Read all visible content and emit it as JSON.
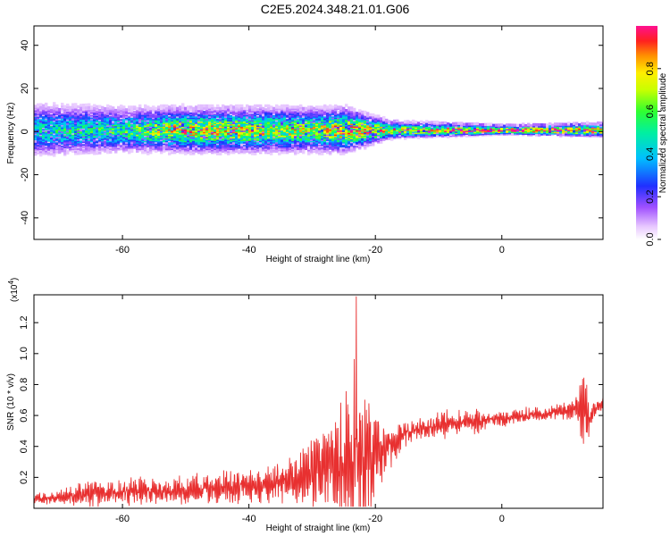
{
  "title": "C2E5.2024.348.21.01.G06",
  "chart_data": [
    {
      "type": "heatmap",
      "xlabel": "Height of straight line (km)",
      "ylabel": "Frequency (Hz)",
      "xlim": [
        -74,
        16
      ],
      "ylim": [
        -50,
        49
      ],
      "xticks": [
        -60,
        -40,
        -20,
        0
      ],
      "yticks": [
        -40,
        -20,
        0,
        20,
        40
      ],
      "colorbar": {
        "label": "Normalized spectral amplitude",
        "range": [
          0.0,
          1.0
        ],
        "ticks": [
          "0.0",
          "0.2",
          "0.4",
          "0.6",
          "0.8"
        ]
      },
      "band": {
        "center_frequency": 1,
        "spread_hz_at_x": [
          [
            -74,
            12
          ],
          [
            -60,
            10
          ],
          [
            -40,
            10
          ],
          [
            -25,
            10
          ],
          [
            -18,
            4
          ],
          [
            -10,
            3
          ],
          [
            0,
            2
          ],
          [
            16,
            3
          ]
        ],
        "peak_amplitude_at_x": [
          [
            -74,
            0.45
          ],
          [
            -60,
            0.55
          ],
          [
            -50,
            0.8
          ],
          [
            -40,
            0.75
          ],
          [
            -30,
            0.7
          ],
          [
            -22,
            0.9
          ],
          [
            -15,
            0.75
          ],
          [
            -8,
            0.95
          ],
          [
            0,
            1.0
          ],
          [
            10,
            0.95
          ],
          [
            16,
            0.9
          ]
        ]
      }
    },
    {
      "type": "line",
      "xlabel": "Height of straight line (km)",
      "ylabel": "SNR (10 * v/v)",
      "yscale_label": "(x10",
      "yscale_exp": "4",
      "yscale_close": ")",
      "xlim": [
        -74,
        16
      ],
      "ylim": [
        0.0,
        1.38
      ],
      "xticks": [
        -60,
        -40,
        -20,
        0
      ],
      "yticks": [
        "0.2",
        "0.4",
        "0.6",
        "0.8",
        "1.0",
        "1.2"
      ],
      "series": [
        {
          "color": "#e83030",
          "x": [
            -74,
            -70,
            -66,
            -62,
            -58,
            -54,
            -50,
            -46,
            -42,
            -38,
            -34,
            -30,
            -27,
            -25,
            -23.2,
            -22,
            -20,
            -18,
            -16,
            -14,
            -12,
            -10,
            -8,
            -6,
            -4,
            -2,
            0,
            2,
            4,
            6,
            8,
            10,
            12,
            13,
            14,
            16
          ],
          "base": [
            0.06,
            0.07,
            0.09,
            0.1,
            0.11,
            0.11,
            0.12,
            0.13,
            0.14,
            0.15,
            0.18,
            0.22,
            0.26,
            0.3,
            0.36,
            0.3,
            0.34,
            0.4,
            0.46,
            0.5,
            0.52,
            0.54,
            0.55,
            0.56,
            0.56,
            0.57,
            0.58,
            0.59,
            0.6,
            0.61,
            0.62,
            0.63,
            0.66,
            0.62,
            0.6,
            0.7
          ],
          "amp": [
            0.04,
            0.05,
            0.1,
            0.08,
            0.1,
            0.08,
            0.1,
            0.12,
            0.12,
            0.12,
            0.15,
            0.25,
            0.3,
            0.45,
            0.95,
            0.6,
            0.3,
            0.18,
            0.1,
            0.08,
            0.08,
            0.1,
            0.1,
            0.08,
            0.1,
            0.06,
            0.06,
            0.05,
            0.06,
            0.05,
            0.05,
            0.06,
            0.1,
            0.35,
            0.1,
            0.05
          ],
          "peak_x": -23.0,
          "peak_y": 1.37
        }
      ]
    }
  ]
}
